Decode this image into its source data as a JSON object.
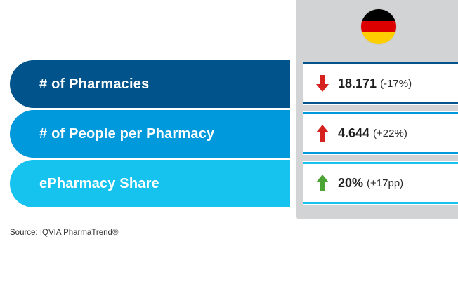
{
  "colors": {
    "row1": "#00548b",
    "row2": "#0099dc",
    "row3": "#16c3ee",
    "column_bg": "#d1d3d4",
    "arrow_down": "#d6221e",
    "arrow_up_red": "#d6221e",
    "arrow_up_green": "#4ca434",
    "flag_black": "#000000",
    "flag_red": "#dd0000",
    "flag_gold": "#ffce00"
  },
  "country": {
    "flag_icon": "germany-flag-icon"
  },
  "rows": [
    {
      "label": "# of Pharmacies",
      "value": "18.171",
      "change": "(-17%)",
      "direction": "down",
      "arrow_icon": "arrow-down-icon"
    },
    {
      "label": "# of People per Pharmacy",
      "value": "4.644",
      "change": "(+22%)",
      "direction": "up",
      "arrow_icon": "arrow-up-icon"
    },
    {
      "label": "ePharmacy Share",
      "value": "20%",
      "change": "(+17pp)",
      "direction": "up",
      "arrow_icon": "arrow-up-icon"
    }
  ],
  "source": "Source: IQVIA PharmaTrend®"
}
